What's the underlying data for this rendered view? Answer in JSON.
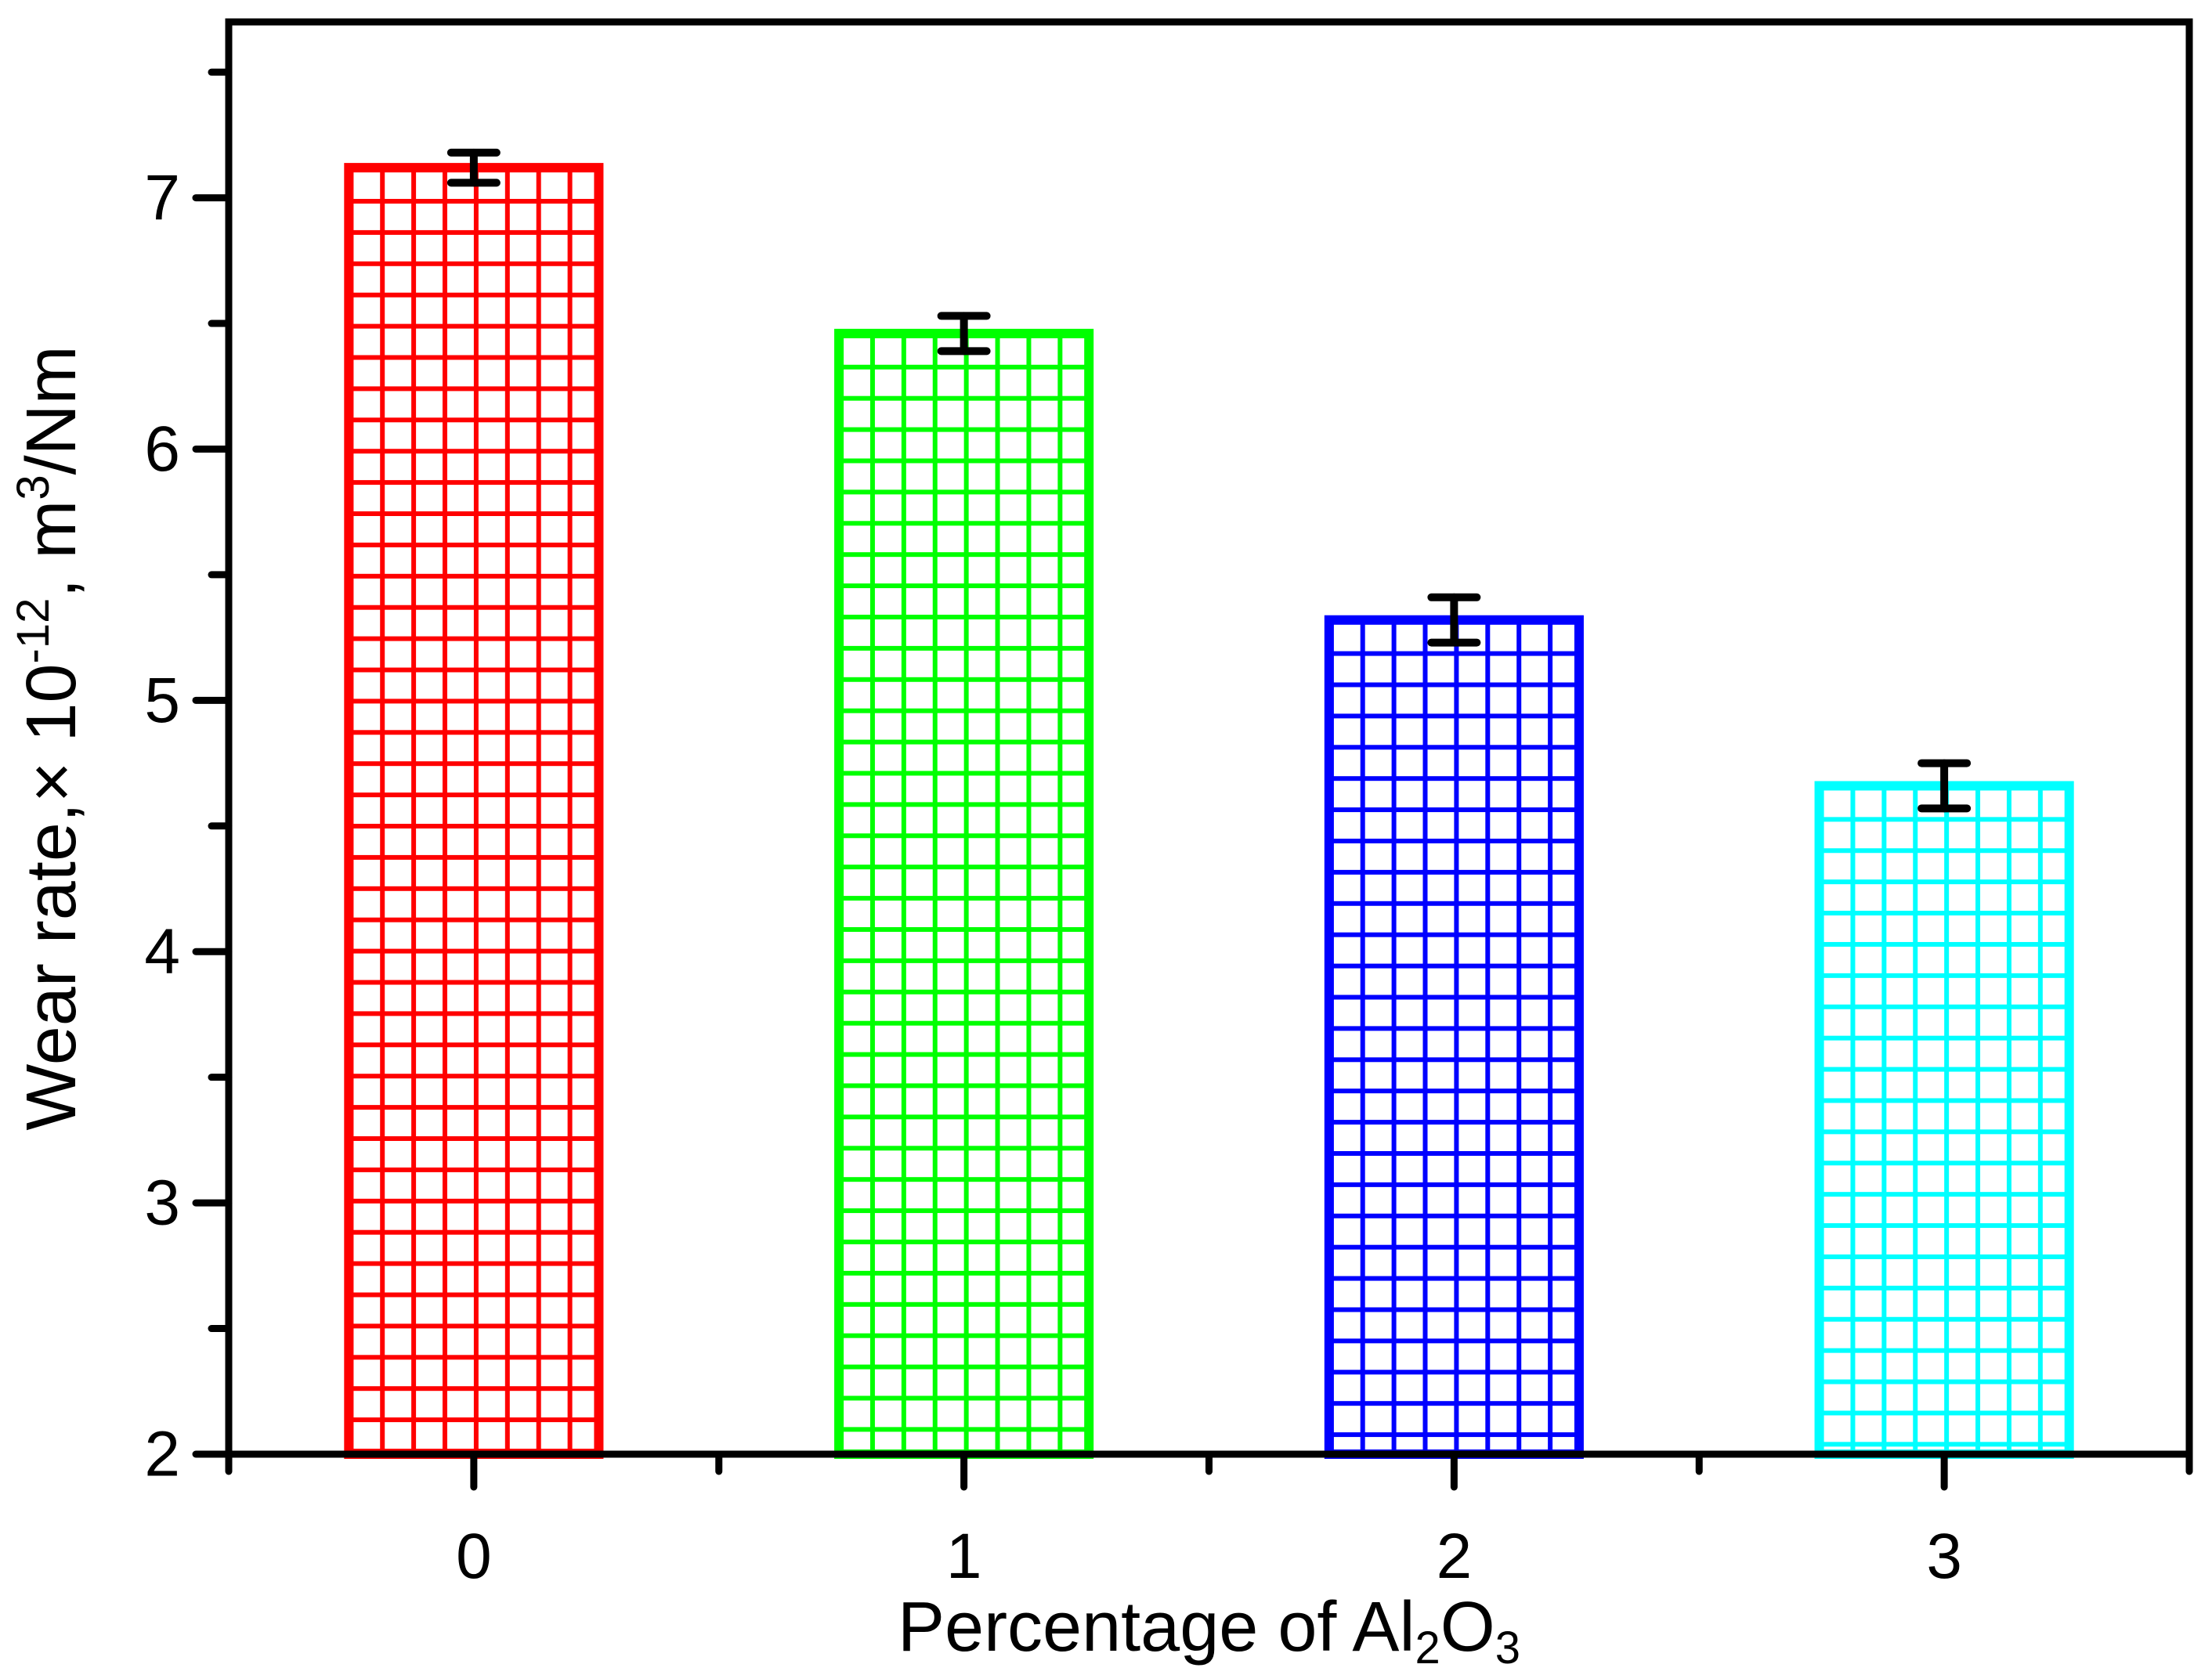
{
  "chart_data": {
    "type": "bar",
    "title": "",
    "categories": [
      "0",
      "1",
      "2",
      "3"
    ],
    "values": [
      7.12,
      6.46,
      5.32,
      4.66
    ],
    "errors": [
      0.06,
      0.07,
      0.09,
      0.09
    ],
    "bar_colors": [
      "#ff0000",
      "#00ff00",
      "#0000ff",
      "#00ffff"
    ],
    "bar_fill_pattern": "square-grid-crosshatch",
    "error_bar_color": "#000000",
    "axis_color": "#000000",
    "background_color": "#ffffff",
    "xlabel_text": "Percentage of Al2O3",
    "xlabel_parts": [
      {
        "t": "Percentage of Al"
      },
      {
        "t": "2",
        "sub": true
      },
      {
        "t": "O"
      },
      {
        "t": "3",
        "sub": true
      }
    ],
    "ylabel_text": "Wear rate,× 10^-12, m^3/Nm",
    "ylabel_parts": [
      {
        "t": "Wear rate,× 10"
      },
      {
        "t": "-12",
        "sup": true
      },
      {
        "t": ", m"
      },
      {
        "t": "3",
        "sup": true
      },
      {
        "t": "/Nm"
      }
    ],
    "xlim": [
      -0.5,
      3.5
    ],
    "ylim": [
      2,
      7.7
    ],
    "ytick_labels": [
      "2",
      "3",
      "4",
      "5",
      "6",
      "7"
    ],
    "ytick_values": [
      2,
      3,
      4,
      5,
      6,
      7
    ],
    "ytick_minor_values": [
      2.5,
      3.5,
      4.5,
      5.5,
      6.5,
      7.5
    ],
    "xtick_values": [
      0,
      1,
      2,
      3
    ],
    "xtick_minor_values": [
      -0.5,
      0.5,
      1.5,
      2.5,
      3.5
    ],
    "grid": false,
    "legend": null
  }
}
